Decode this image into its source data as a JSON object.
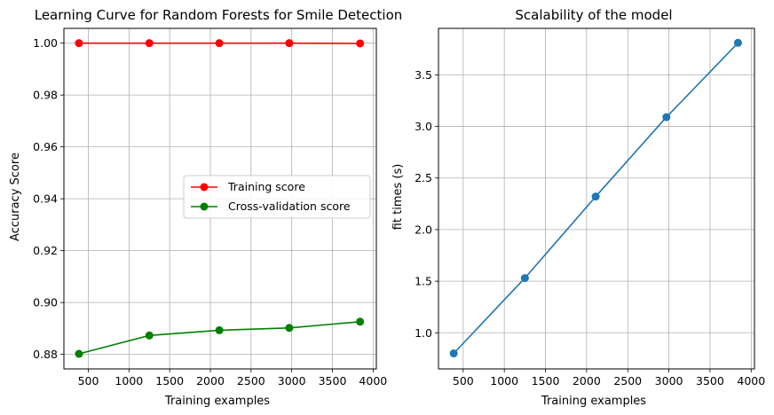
{
  "chart_data": [
    {
      "type": "line",
      "title": "Learning Curve for Random Forests for Smile Detection",
      "xlabel": "Training examples",
      "ylabel": "Accuracy Score",
      "xlim": [
        200,
        4040
      ],
      "ylim": [
        0.8744,
        1.0057
      ],
      "xticks": [
        500,
        1000,
        1500,
        2000,
        2500,
        3000,
        3500,
        4000
      ],
      "yticks": [
        0.88,
        0.9,
        0.92,
        0.94,
        0.96,
        0.98,
        1.0
      ],
      "ytick_labels": [
        "0.88",
        "0.90",
        "0.92",
        "0.94",
        "0.96",
        "0.98",
        "1.00"
      ],
      "grid": true,
      "legend_position": "center-right",
      "x": [
        385,
        1250,
        2110,
        2970,
        3840
      ],
      "series": [
        {
          "name": "Training score",
          "color": "#ff0000",
          "values": [
            1.0,
            1.0,
            1.0,
            1.0,
            0.9999
          ]
        },
        {
          "name": "Cross-validation score",
          "color": "#008000",
          "values": [
            0.8802,
            0.8873,
            0.8893,
            0.8902,
            0.8926
          ]
        }
      ]
    },
    {
      "type": "line",
      "title": "Scalability of the model",
      "xlabel": "Training examples",
      "ylabel": "fit times (s)",
      "xlim": [
        200,
        4040
      ],
      "ylim": [
        0.65,
        3.95
      ],
      "xticks": [
        500,
        1000,
        1500,
        2000,
        2500,
        3000,
        3500,
        4000
      ],
      "yticks": [
        1.0,
        1.5,
        2.0,
        2.5,
        3.0,
        3.5
      ],
      "ytick_labels": [
        "1.0",
        "1.5",
        "2.0",
        "2.5",
        "3.0",
        "3.5"
      ],
      "grid": true,
      "x": [
        385,
        1250,
        2110,
        2970,
        3840
      ],
      "series": [
        {
          "color": "#1f77b4",
          "values": [
            0.8,
            1.53,
            2.32,
            3.09,
            3.81
          ]
        }
      ]
    }
  ]
}
